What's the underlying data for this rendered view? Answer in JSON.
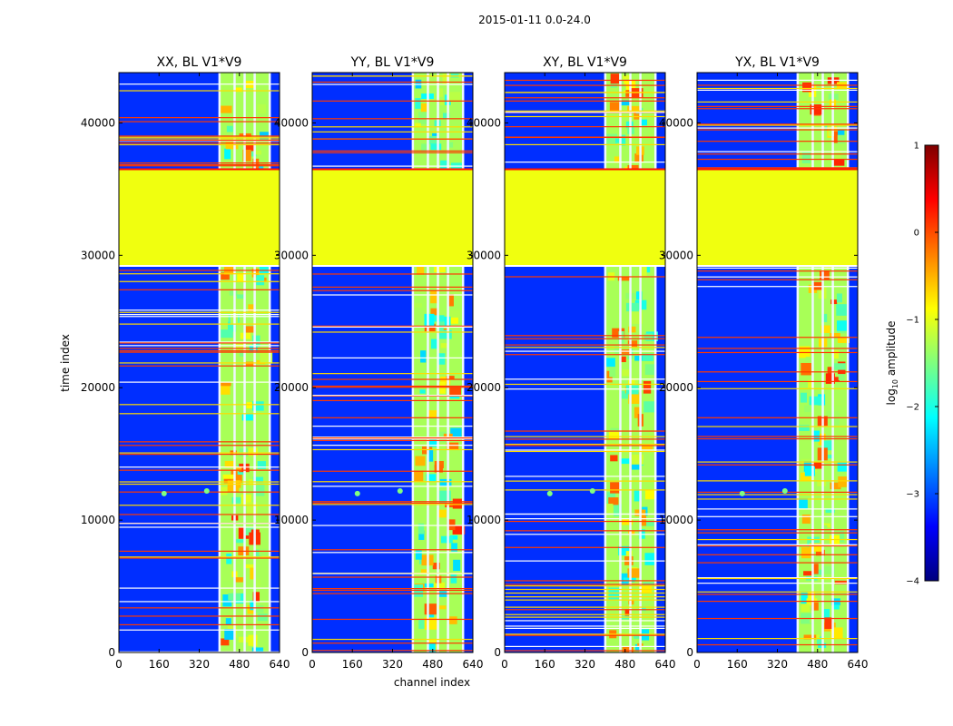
{
  "chart_data": {
    "type": "heatmap",
    "suptitle": "2015-01-11 0.0-24.0",
    "xlabel": "channel index",
    "ylabel": "time index",
    "xlim": [
      0,
      640
    ],
    "ylim": [
      0,
      43800
    ],
    "xticks": [
      0,
      160,
      320,
      480,
      640
    ],
    "yticks": [
      0,
      10000,
      20000,
      30000,
      40000
    ],
    "panels": [
      {
        "title": "XX, BL V1*V9"
      },
      {
        "title": "YY, BL V1*V9"
      },
      {
        "title": "XY, BL V1*V9"
      },
      {
        "title": "YX, BL V1*V9"
      }
    ],
    "colorbar": {
      "label": "log10 amplitude",
      "label_text": "log",
      "label_sub": "10",
      "label_rest": " amplitude",
      "range": [
        -4,
        1
      ],
      "ticks": [
        1,
        0,
        -1,
        -2,
        -3,
        -4
      ],
      "colormap": "jet",
      "colors": [
        "#00007f",
        "#0000ff",
        "#007fff",
        "#00ffff",
        "#7fff7f",
        "#ffff00",
        "#ff7f00",
        "#ff0000",
        "#7f0000"
      ]
    },
    "features": {
      "flagged_time_range": [
        29200,
        36500
      ],
      "flagged_value_log10": -0.95,
      "high_amplitude_channel_range": [
        400,
        600
      ],
      "flagged_channels": [
        400,
        460,
        500,
        540,
        600
      ]
    }
  }
}
